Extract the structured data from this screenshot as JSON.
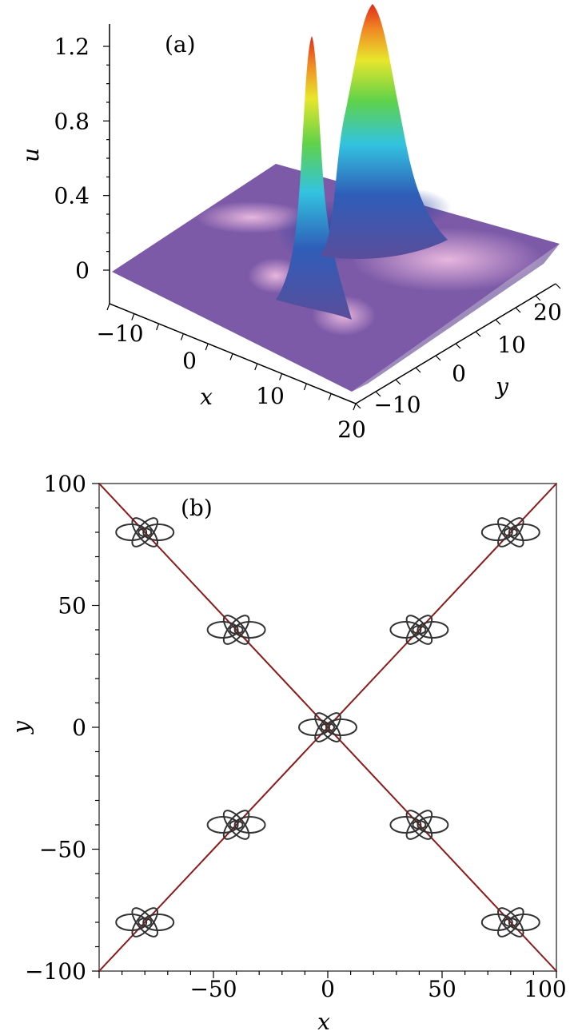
{
  "chart_data": [
    {
      "type": "surface",
      "panel_label": "(a)",
      "axis_labels": {
        "x": "x",
        "y": "y",
        "z": "u"
      },
      "z_ticks": [
        "0",
        "0.4",
        "0.8",
        "1.2"
      ],
      "x_ticks": [
        "−10",
        "0",
        "10",
        "20"
      ],
      "y_ticks": [
        "−10",
        "0",
        "10",
        "20"
      ],
      "xlim": [
        -15,
        20
      ],
      "ylim": [
        -15,
        20
      ],
      "zlim": [
        0,
        1.3
      ],
      "peaks": [
        {
          "x": -2,
          "y": 2,
          "u": 1.2
        },
        {
          "x": 2,
          "y": 8,
          "u": 1.3
        }
      ],
      "colormap": [
        "#5a4d9a",
        "#2f5db8",
        "#33c3e0",
        "#5fd24a",
        "#e8e62c",
        "#f08a24",
        "#e02a1a"
      ]
    },
    {
      "type": "line",
      "panel_label": "(b)",
      "axis_labels": {
        "x": "x",
        "y": "y"
      },
      "x_ticks": [
        "−50",
        "0",
        "50",
        "100"
      ],
      "y_ticks": [
        "−100",
        "−50",
        "0",
        "50",
        "100"
      ],
      "xlim": [
        -100,
        100
      ],
      "ylim": [
        -100,
        100
      ],
      "series": [
        {
          "x": [
            -100,
            100
          ],
          "y": [
            -100,
            100
          ],
          "color": "#8b1a1a"
        },
        {
          "x": [
            -100,
            100
          ],
          "y": [
            100,
            -100
          ],
          "color": "#8b1a1a"
        }
      ],
      "loop_centers": [
        [
          -80,
          80
        ],
        [
          80,
          80
        ],
        [
          -40,
          40
        ],
        [
          40,
          40
        ],
        [
          0,
          0
        ],
        [
          -40,
          -40
        ],
        [
          40,
          -40
        ],
        [
          -80,
          -80
        ],
        [
          80,
          -80
        ]
      ],
      "loop_color": "#333333"
    }
  ]
}
